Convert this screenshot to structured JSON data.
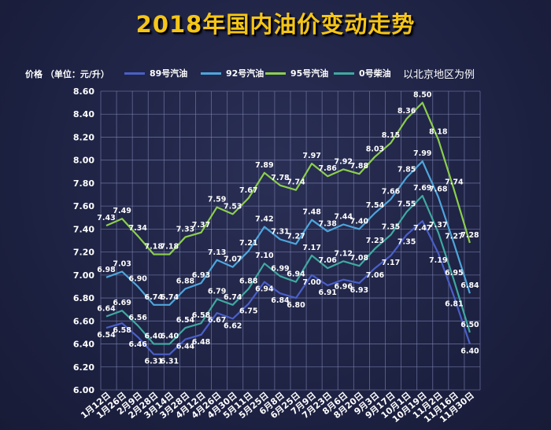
{
  "title": "2018年国内油价变动走势",
  "unit_label": "价格 （单位：元/升）",
  "note": "以北京地区为例",
  "chart_data": {
    "type": "line",
    "title": "2018年国内油价变动走势",
    "ylabel": "价格 （单位：元/升）",
    "xlabel": "",
    "ylim": [
      6.0,
      8.6
    ],
    "yticks": [
      "6.00",
      "6.20",
      "6.40",
      "6.60",
      "6.80",
      "7.00",
      "7.20",
      "7.40",
      "7.60",
      "7.80",
      "8.00",
      "8.20",
      "8.40",
      "8.60"
    ],
    "grid": true,
    "legend_position": "top",
    "categories": [
      "1月12日",
      "1月26日",
      "2月9日",
      "2月28日",
      "3月14日",
      "3月28日",
      "4月12日",
      "4月26日",
      "4月30日",
      "5月11日",
      "5月25日",
      "6月8日",
      "6月25日",
      "7月9日",
      "7月23日",
      "8月6日",
      "8月20日",
      "9月3日",
      "9月17日",
      "10月1日",
      "10月19日",
      "11月2日",
      "11月16日",
      "11月30日"
    ],
    "series": [
      {
        "name": "89号汽油",
        "color": "#4a5fc8",
        "values": [
          6.54,
          6.58,
          6.46,
          6.31,
          6.31,
          6.44,
          6.48,
          6.67,
          6.62,
          6.75,
          6.94,
          6.84,
          6.8,
          7.0,
          6.91,
          6.96,
          6.93,
          7.06,
          7.17,
          7.35,
          7.47,
          7.19,
          6.81,
          6.4
        ]
      },
      {
        "name": "92号汽油",
        "color": "#4ea6dc",
        "values": [
          6.98,
          7.03,
          6.9,
          6.74,
          6.74,
          6.88,
          6.93,
          7.13,
          7.07,
          7.21,
          7.42,
          7.31,
          7.27,
          7.48,
          7.38,
          7.44,
          7.4,
          7.54,
          7.66,
          7.85,
          7.99,
          7.68,
          7.27,
          6.84
        ]
      },
      {
        "name": "95号汽油",
        "color": "#8ccf4d",
        "values": [
          7.43,
          7.49,
          7.34,
          7.18,
          7.18,
          7.33,
          7.37,
          7.59,
          7.53,
          7.67,
          7.89,
          7.78,
          7.74,
          7.97,
          7.86,
          7.92,
          7.88,
          8.03,
          8.15,
          8.36,
          8.5,
          8.18,
          7.74,
          7.28
        ]
      },
      {
        "name": "0号柴油",
        "color": "#3fa9a0",
        "values": [
          6.64,
          6.69,
          6.56,
          6.4,
          6.4,
          6.54,
          6.58,
          6.79,
          6.74,
          6.88,
          7.1,
          6.99,
          6.94,
          7.17,
          7.06,
          7.12,
          7.08,
          7.23,
          7.35,
          7.55,
          7.69,
          7.37,
          6.95,
          6.5
        ]
      }
    ],
    "legend_colors": {
      "89号汽油": "#4a5fc8",
      "92号汽油": "#4ea6dc",
      "95号汽油": "#8ccf4d",
      "0号柴油": "#3fa9a0"
    }
  }
}
